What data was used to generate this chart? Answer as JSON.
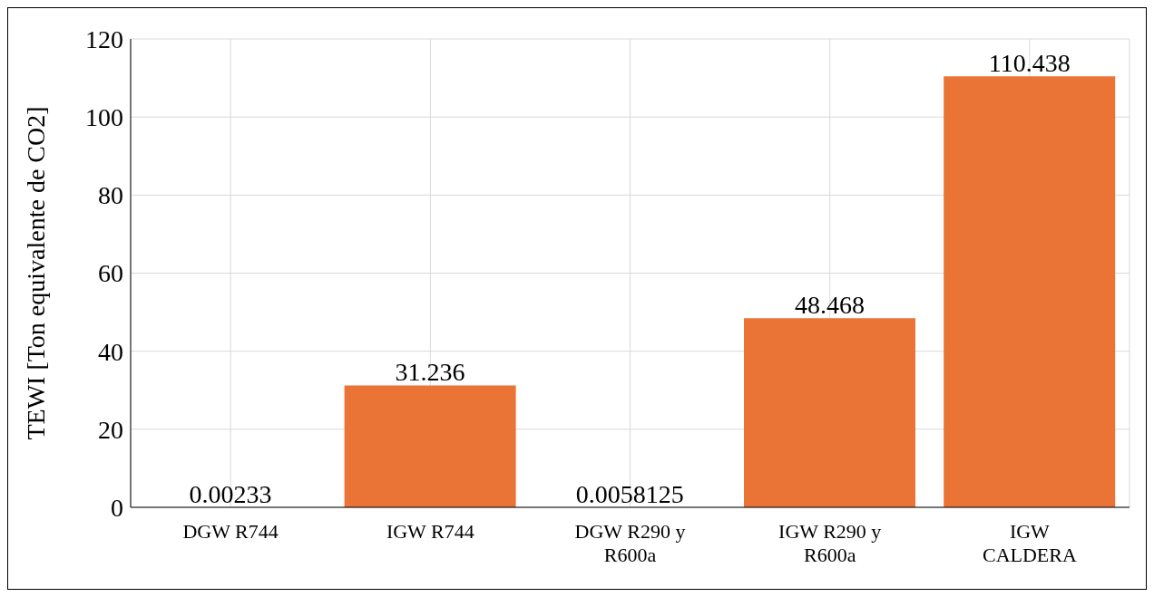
{
  "chart_data": {
    "type": "bar",
    "ylabel": "TEWI [Ton equivalente de CO2]",
    "categories": [
      "DGW R744",
      "IGW R744",
      "DGW R290 y R600a",
      "IGW R290 y R600a",
      "IGW CALDERA"
    ],
    "values": [
      0.00233,
      31.236,
      0.0058125,
      48.468,
      110.438
    ],
    "color": "#ea7336",
    "ylim": [
      0,
      120
    ],
    "yticks": [
      0,
      20,
      40,
      60,
      80,
      100,
      120
    ],
    "grid": true,
    "data_labels": true
  }
}
